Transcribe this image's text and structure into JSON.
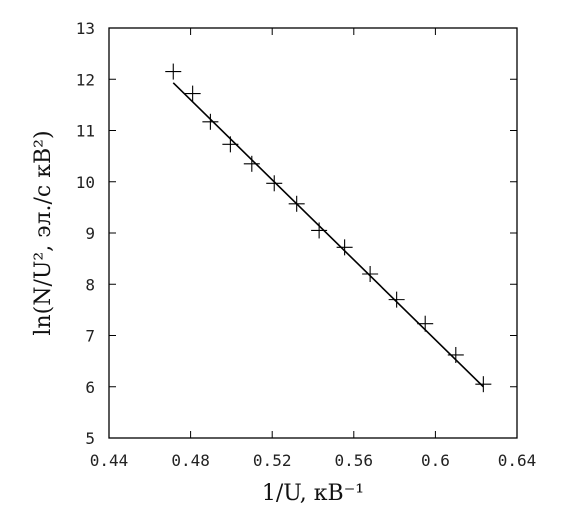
{
  "chart_data": {
    "type": "scatter",
    "xlabel": "1/U, кВ⁻¹",
    "ylabel": "ln(N/U², эл./с кВ²)",
    "xlim": [
      0.44,
      0.64
    ],
    "ylim": [
      5,
      13
    ],
    "xticks": [
      0.44,
      0.48,
      0.52,
      0.56,
      0.6,
      0.64
    ],
    "xtick_labels": [
      "0.44",
      "0.48",
      "0.52",
      "0.56",
      "0.6",
      "0.64"
    ],
    "yticks": [
      5,
      6,
      7,
      8,
      9,
      10,
      11,
      12,
      13
    ],
    "ytick_labels": [
      "5",
      "6",
      "7",
      "8",
      "9",
      "10",
      "11",
      "12",
      "13"
    ],
    "grid": false,
    "series": [
      {
        "kind": "points",
        "marker": "plus",
        "x": [
          0.4715,
          0.481,
          0.4897,
          0.4995,
          0.51,
          0.521,
          0.532,
          0.543,
          0.5555,
          0.568,
          0.581,
          0.595,
          0.61,
          0.6235
        ],
        "y": [
          12.15,
          11.72,
          11.17,
          10.73,
          10.35,
          9.97,
          9.57,
          9.05,
          8.72,
          8.2,
          7.7,
          7.23,
          6.62,
          6.05
        ]
      },
      {
        "kind": "fit-line",
        "x": [
          0.4715,
          0.6235
        ],
        "y": [
          11.93,
          6.0
        ]
      }
    ]
  }
}
